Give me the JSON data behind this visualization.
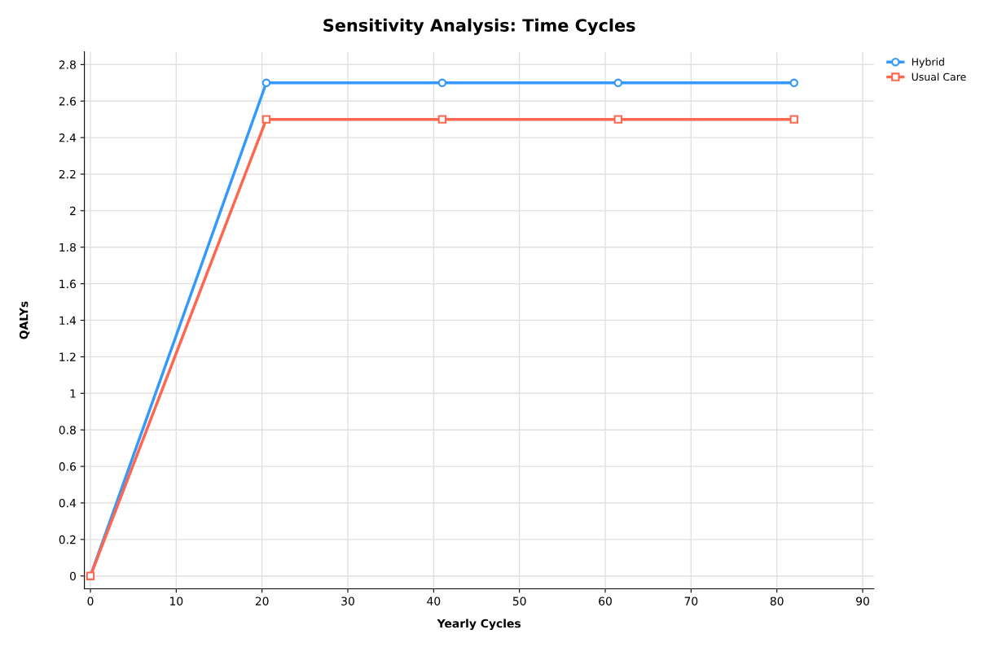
{
  "chart_data": {
    "type": "line",
    "title": "Sensitivity Analysis: Time Cycles",
    "xlabel": "Yearly Cycles",
    "ylabel": "QALYs",
    "x": [
      0,
      20.5,
      41,
      61.5,
      82
    ],
    "series": [
      {
        "name": "Hybrid",
        "color": "#3399ff",
        "marker": "circle",
        "values": [
          0,
          2.7,
          2.7,
          2.7,
          2.7
        ]
      },
      {
        "name": "Usual Care",
        "color": "#ff6650",
        "marker": "square",
        "values": [
          0,
          2.5,
          2.5,
          2.5,
          2.5
        ]
      }
    ],
    "xlim": [
      -0.7,
      91.3
    ],
    "xticks": [
      0,
      10,
      20,
      30,
      40,
      50,
      60,
      70,
      80,
      90
    ],
    "ylim": [
      -0.07,
      2.87
    ],
    "yticks": [
      0,
      0.2,
      0.4,
      0.6,
      0.8,
      1,
      1.2,
      1.4,
      1.6,
      1.8,
      2,
      2.2,
      2.4,
      2.6,
      2.8
    ],
    "grid": true,
    "legend": "top right",
    "line_style": "solid"
  }
}
